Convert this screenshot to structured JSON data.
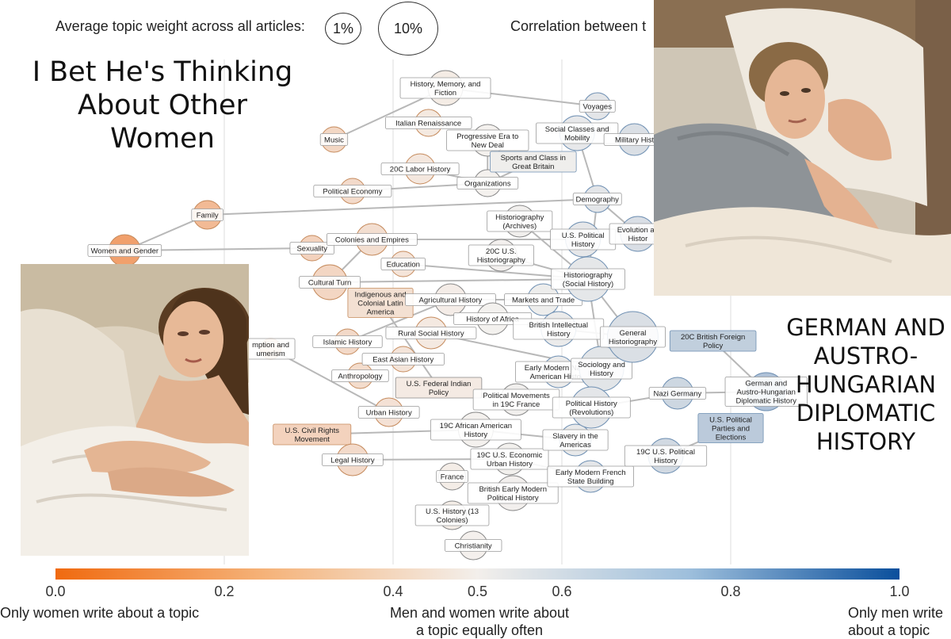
{
  "legend": {
    "size_title": "Average topic weight across all articles:",
    "size_small": "1%",
    "size_large": "10%",
    "correlation_title": "Correlation between t"
  },
  "meme": {
    "top_caption": "I Bet He's Thinking About Other Women",
    "right_caption": "GERMAN AND AUSTRO-HUNGARIAN DIPLOMATIC HISTORY",
    "woman_photo": "woman-in-bed-photo",
    "man_photo": "man-in-bed-photo"
  },
  "colors": {
    "women": "#f07020",
    "neutral": "#f4f1ee",
    "men": "#0a52a0",
    "edge": "#b8b8b8",
    "grid": "#e2e2e2"
  },
  "chart_data": {
    "type": "network",
    "x_axis": {
      "min": 0,
      "max": 1,
      "ticks": [
        {
          "value": 0.0,
          "label": "0.0"
        },
        {
          "value": 0.2,
          "label": "0.2"
        },
        {
          "value": 0.4,
          "label": "0.4"
        },
        {
          "value": 0.5,
          "label": "0.5"
        },
        {
          "value": 0.6,
          "label": "0.6"
        },
        {
          "value": 0.8,
          "label": "0.8"
        },
        {
          "value": 1.0,
          "label": "1.0"
        }
      ],
      "gridlines_at": [
        0.2,
        0.4,
        0.6,
        0.8
      ],
      "left_description": "Only women write about a topic",
      "center_description": "Men and women write about a topic equally often",
      "right_description": "Only men write about a topic",
      "colorbar": "orange-to-blue"
    },
    "nodes": [
      {
        "id": "family",
        "label": "Family",
        "x": 0.18,
        "r": 18
      },
      {
        "id": "women_gender",
        "label": "Women and Gender",
        "x": 0.082,
        "r": 20
      },
      {
        "id": "consumption",
        "label": "mption and\numerism",
        "x": 0.255,
        "r": 13
      },
      {
        "id": "music",
        "label": "Music",
        "x": 0.33,
        "r": 16
      },
      {
        "id": "sexuality",
        "label": "Sexuality",
        "x": 0.304,
        "r": 16
      },
      {
        "id": "colonies",
        "label": "Colonies and Empires",
        "x": 0.375,
        "r": 20
      },
      {
        "id": "cultural_turn",
        "label": "Cultural Turn",
        "x": 0.325,
        "r": 22
      },
      {
        "id": "political_economy",
        "label": "Political Economy",
        "x": 0.352,
        "r": 16
      },
      {
        "id": "civil_rights",
        "label": "U.S. Civil Rights\nMovement",
        "x": 0.304,
        "r": 12,
        "shape": "box"
      },
      {
        "id": "legal_history",
        "label": "Legal History",
        "x": 0.352,
        "r": 20
      },
      {
        "id": "islamic_history",
        "label": "Islamic History",
        "x": 0.346,
        "r": 16
      },
      {
        "id": "anthropology",
        "label": "Anthropology",
        "x": 0.361,
        "r": 16
      },
      {
        "id": "indigenous_latam",
        "label": "Indigenous and\nColonial Latin\nAmerica",
        "x": 0.385,
        "r": 18,
        "shape": "box"
      },
      {
        "id": "urban_history",
        "label": "Urban History",
        "x": 0.395,
        "r": 18
      },
      {
        "id": "education",
        "label": "Education",
        "x": 0.412,
        "r": 16
      },
      {
        "id": "east_asian",
        "label": "East Asian History",
        "x": 0.412,
        "r": 16
      },
      {
        "id": "italian_ren",
        "label": "Italian Renaissance",
        "x": 0.442,
        "r": 17
      },
      {
        "id": "history_memory",
        "label": "History, Memory, and\nFiction",
        "x": 0.462,
        "r": 22
      },
      {
        "id": "labor_20c",
        "label": "20C Labor History",
        "x": 0.432,
        "r": 19
      },
      {
        "id": "ag_history",
        "label": "Agricultural History",
        "x": 0.468,
        "r": 20
      },
      {
        "id": "rural_social",
        "label": "Rural Social History",
        "x": 0.445,
        "r": 20
      },
      {
        "id": "progressive_era",
        "label": "Progressive Era to\nNew Deal",
        "x": 0.512,
        "r": 20
      },
      {
        "id": "organizations",
        "label": "Organizations",
        "x": 0.512,
        "r": 17
      },
      {
        "id": "us_indian_policy",
        "label": "U.S. Federal Indian\nPolicy",
        "x": 0.454,
        "r": 18,
        "shape": "box"
      },
      {
        "id": "civil_19c_african",
        "label": "19C African American\nHistory",
        "x": 0.498,
        "r": 22
      },
      {
        "id": "france",
        "label": "France",
        "x": 0.47,
        "r": 17
      },
      {
        "id": "us_13",
        "label": "U.S. History (13\nColonies)",
        "x": 0.47,
        "r": 18
      },
      {
        "id": "christianity",
        "label": "Christianity",
        "x": 0.495,
        "r": 18
      },
      {
        "id": "historiography_archives",
        "label": "Historiography\n(Archives)",
        "x": 0.55,
        "r": 20
      },
      {
        "id": "historiography_20c_us",
        "label": "20C U.S.\nHistoriography",
        "x": 0.528,
        "r": 20
      },
      {
        "id": "history_africa",
        "label": "History of Africa",
        "x": 0.518,
        "r": 20
      },
      {
        "id": "markets_trade",
        "label": "Markets and Trade",
        "x": 0.578,
        "r": 20
      },
      {
        "id": "sports_class",
        "label": "Sports and Class in\nGreat Britain",
        "x": 0.566,
        "r": 18,
        "shape": "box"
      },
      {
        "id": "british_intellectual",
        "label": "British Intellectual\nHistory",
        "x": 0.596,
        "r": 22
      },
      {
        "id": "early_modern_native",
        "label": "Early Modern Native\nAmerican History",
        "x": 0.596,
        "r": 20
      },
      {
        "id": "political_movements",
        "label": "Political Movements\nin 19C France",
        "x": 0.546,
        "r": 20
      },
      {
        "id": "econ_urban_19c",
        "label": "19C U.S. Economic\nUrban History",
        "x": 0.538,
        "r": 20
      },
      {
        "id": "british_early_modern",
        "label": "British Early Modern\nPolitical History",
        "x": 0.542,
        "r": 22
      },
      {
        "id": "social_classes",
        "label": "Social Classes and\nMobility",
        "x": 0.618,
        "r": 22
      },
      {
        "id": "slavery_americas",
        "label": "Slavery in the\nAmericas",
        "x": 0.616,
        "r": 20
      },
      {
        "id": "early_modern_french",
        "label": "Early Modern French\nState Building",
        "x": 0.634,
        "r": 20
      },
      {
        "id": "voyages",
        "label": "Voyages",
        "x": 0.642,
        "r": 17
      },
      {
        "id": "demography",
        "label": "Demography",
        "x": 0.642,
        "r": 17
      },
      {
        "id": "us_political_history",
        "label": "U.S. Political\nHistory",
        "x": 0.625,
        "r": 22
      },
      {
        "id": "historiography_social",
        "label": "Historiography\n(Social History)",
        "x": 0.631,
        "r": 28
      },
      {
        "id": "sociology_history",
        "label": "Sociology and\nHistory",
        "x": 0.647,
        "r": 28
      },
      {
        "id": "political_revolutions",
        "label": "Political History\n(Revolutions)",
        "x": 0.635,
        "r": 26
      },
      {
        "id": "military_history",
        "label": "Military Hist",
        "x": 0.686,
        "r": 20
      },
      {
        "id": "evolution",
        "label": "Evolution an\nHistor",
        "x": 0.69,
        "r": 22
      },
      {
        "id": "general_historiography",
        "label": "General\nHistoriography",
        "x": 0.684,
        "r": 32
      },
      {
        "id": "nazi_germany",
        "label": "Nazi Germany",
        "x": 0.737,
        "r": 20
      },
      {
        "id": "political_19c_us",
        "label": "19C U.S. Political\nHistory",
        "x": 0.723,
        "r": 22
      },
      {
        "id": "british_foreign_20c",
        "label": "20C British Foreign\nPolicy",
        "x": 0.779,
        "r": 18,
        "shape": "box"
      },
      {
        "id": "german_austro",
        "label": "German and\nAustro-Hungarian\nDiplomatic History",
        "x": 0.842,
        "r": 24
      },
      {
        "id": "us_parties",
        "label": "U.S. Political\nParties and\nElections",
        "x": 0.8,
        "r": 18,
        "shape": "box"
      }
    ],
    "edges": [
      [
        "history_memory",
        "voyages"
      ],
      [
        "history_memory",
        "music"
      ],
      [
        "family",
        "demography"
      ],
      [
        "family",
        "women_gender"
      ],
      [
        "women_gender",
        "sexuality"
      ],
      [
        "colonies",
        "us_political_history"
      ],
      [
        "colonies",
        "cultural_turn"
      ],
      [
        "cultural_turn",
        "historiography_social"
      ],
      [
        "education",
        "historiography_social"
      ],
      [
        "historiography_20c_us",
        "historiography_social"
      ],
      [
        "historiography_archives",
        "historiography_social"
      ],
      [
        "us_political_history",
        "historiography_social"
      ],
      [
        "historiography_social",
        "general_historiography"
      ],
      [
        "historiography_social",
        "sociology_history"
      ],
      [
        "social_classes",
        "demography"
      ],
      [
        "progressive_era",
        "organizations"
      ],
      [
        "labor_20c",
        "organizations"
      ],
      [
        "organizations",
        "political_economy"
      ],
      [
        "sports_class",
        "organizations"
      ],
      [
        "consumption",
        "urban_history"
      ],
      [
        "civil_rights",
        "civil_19c_african"
      ],
      [
        "civil_19c_african",
        "slavery_americas"
      ],
      [
        "rural_social",
        "sociology_history"
      ],
      [
        "ag_history",
        "markets_trade"
      ],
      [
        "islamic_history",
        "ag_history"
      ],
      [
        "political_revolutions",
        "nazi_germany"
      ],
      [
        "nazi_germany",
        "german_austro"
      ],
      [
        "british_foreign_20c",
        "german_austro"
      ],
      [
        "political_19c_us",
        "us_parties"
      ],
      [
        "econ_urban_19c",
        "early_modern_french"
      ],
      [
        "legal_history",
        "econ_urban_19c"
      ],
      [
        "british_intellectual",
        "general_historiography"
      ],
      [
        "indigenous_latam",
        "us_indian_policy"
      ],
      [
        "sociology_history",
        "political_revolutions"
      ],
      [
        "historiography_social",
        "demography"
      ],
      [
        "demography",
        "evolution"
      ]
    ]
  }
}
